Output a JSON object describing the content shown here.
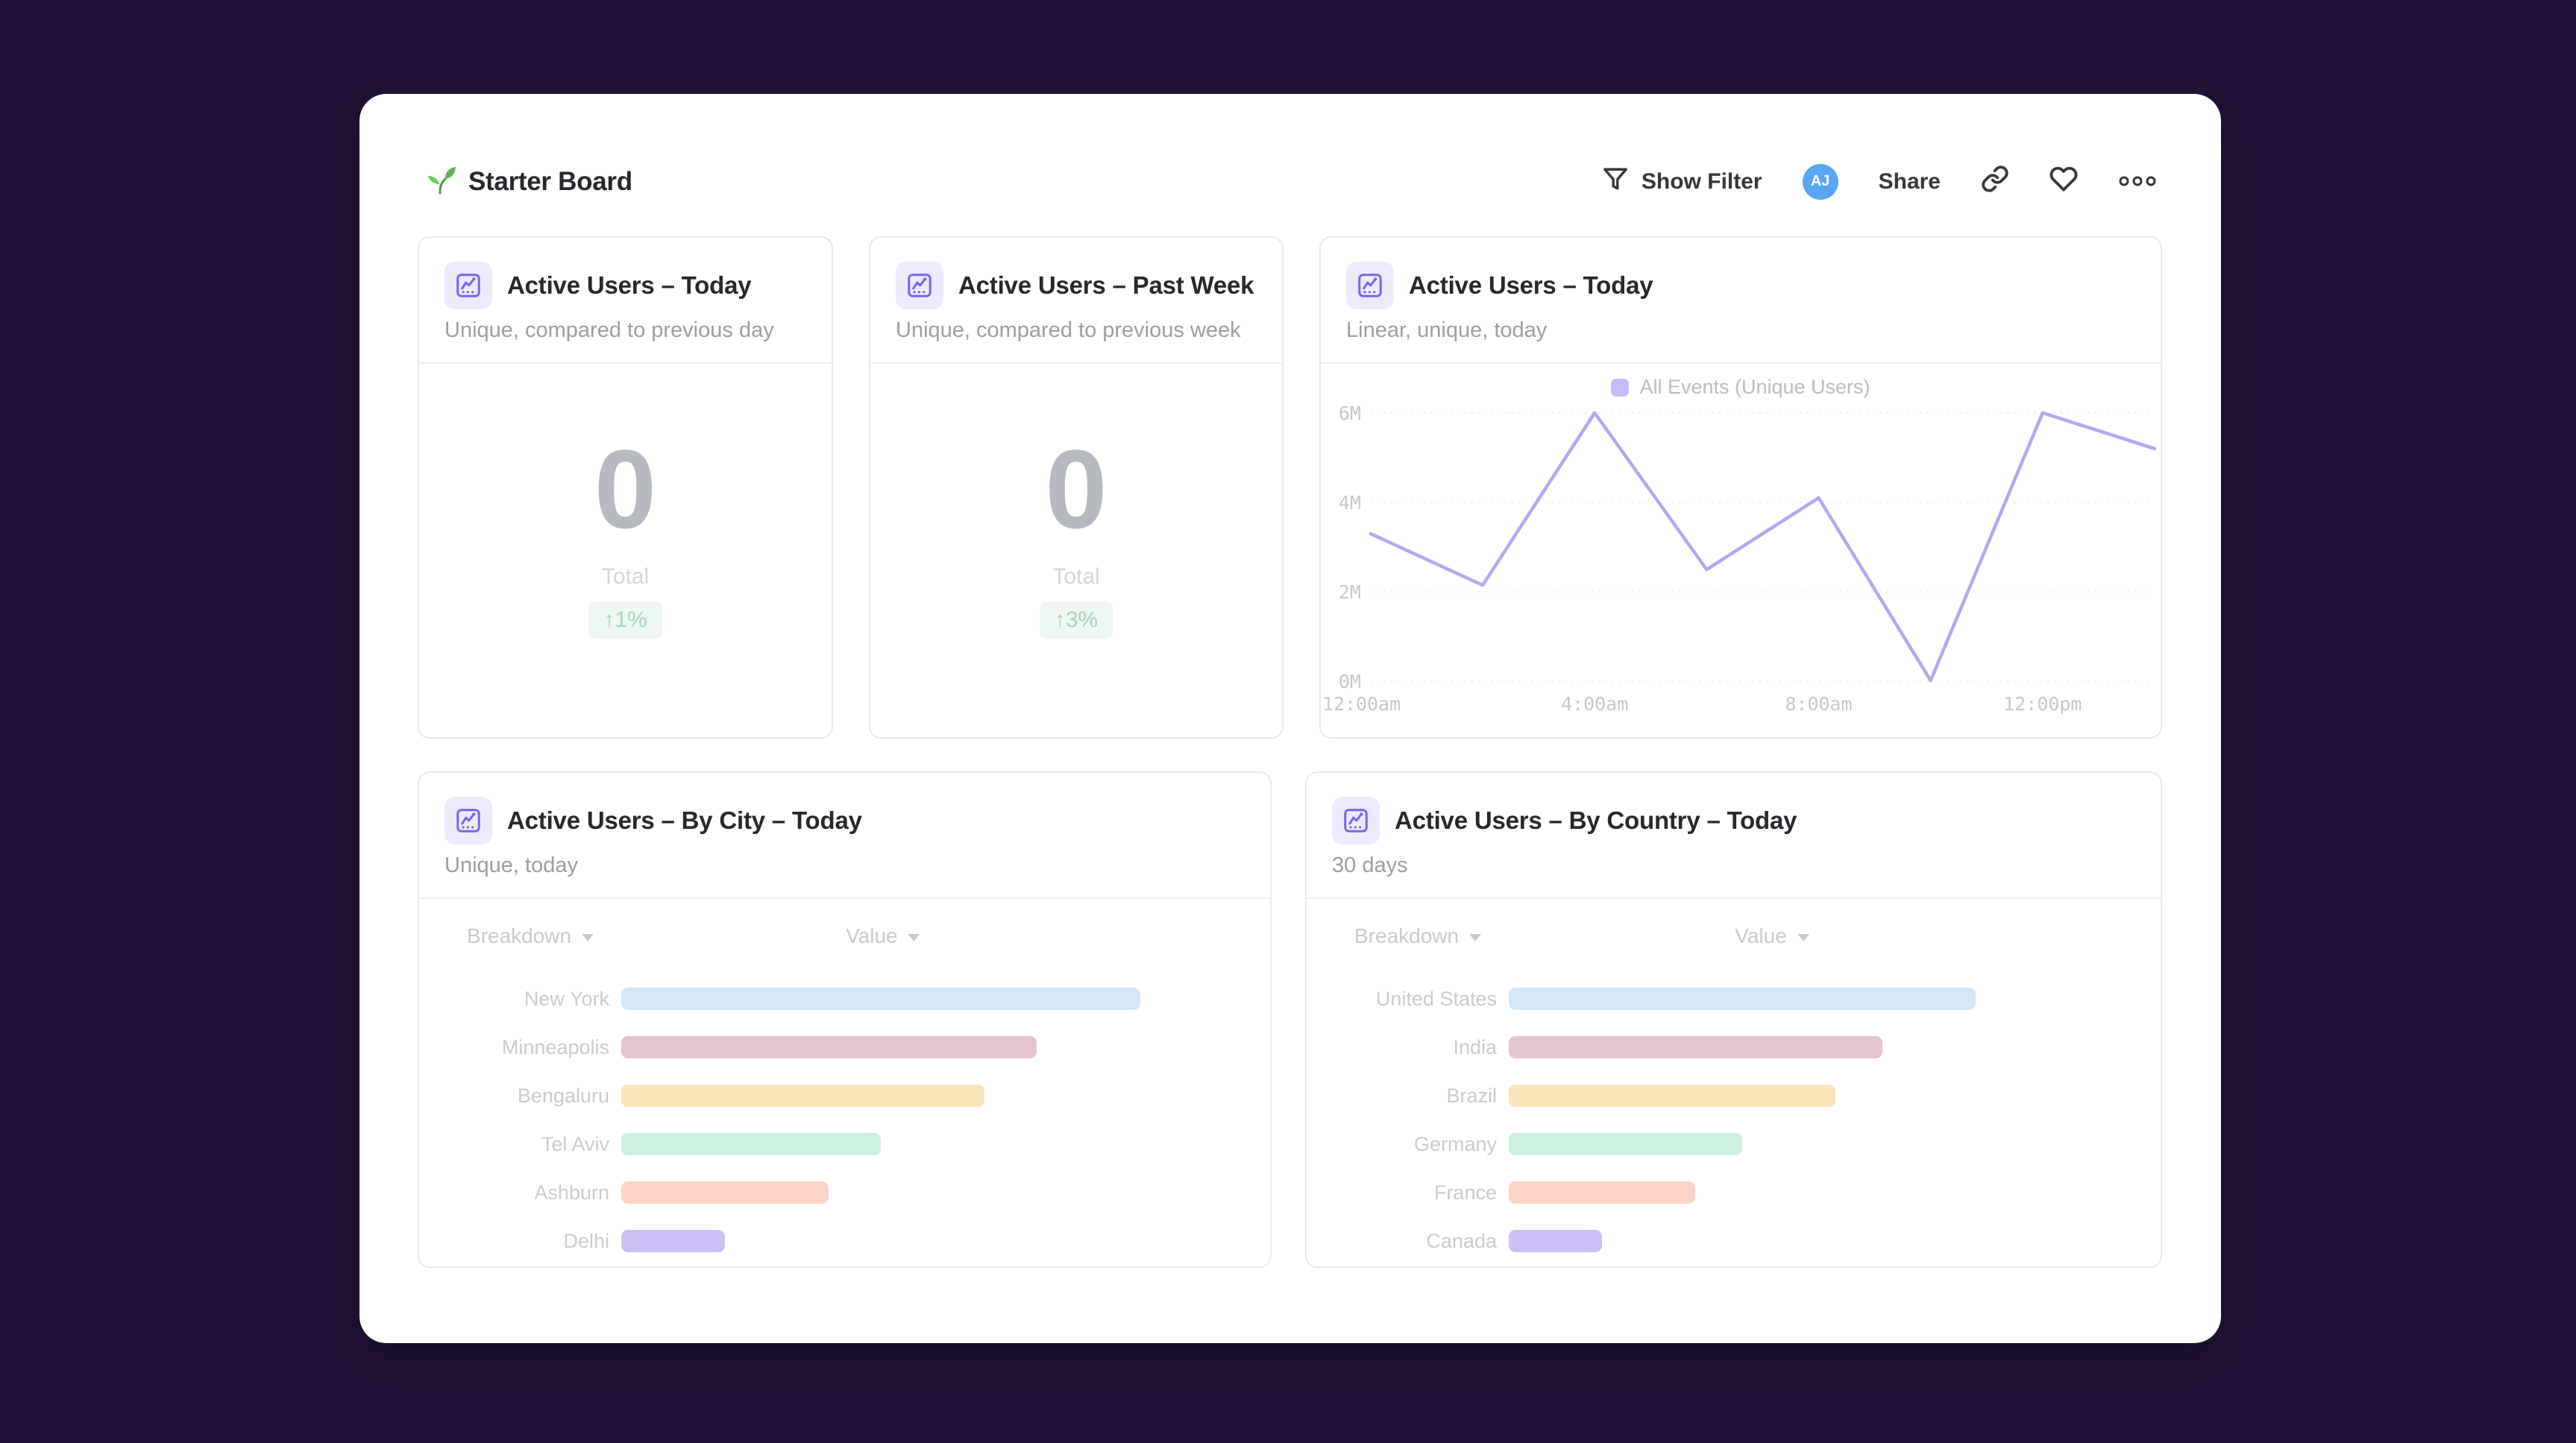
{
  "page": {
    "title": "Starter Board",
    "title_icon": "seedling"
  },
  "toolbar": {
    "show_filter": "Show Filter",
    "avatar": "AJ",
    "share": "Share",
    "icons": [
      "filter-icon",
      "link-icon",
      "heart-icon",
      "more-options-icon"
    ]
  },
  "colors": {
    "background": "#211239",
    "accent_purple": "#7c62f2",
    "line_series": "#b4a7f2",
    "legend_square": "#c8bcf8",
    "delta_badge_bg": "#eef6f1",
    "delta_badge_text": "#a3d6bd",
    "avatar_bg": "#58a6f3"
  },
  "stat_cards": [
    {
      "title": "Active Users – Today",
      "subtitle": "Unique, compared to previous day",
      "value": "0",
      "value_label": "Total",
      "delta": "↑1%"
    },
    {
      "title": "Active Users – Past Week",
      "subtitle": "Unique, compared to previous week",
      "value": "0",
      "value_label": "Total",
      "delta": "↑3%"
    }
  ],
  "line_card": {
    "title": "Active Users – Today",
    "subtitle": "Linear, unique, today",
    "legend": "All Events (Unique Users)"
  },
  "breakdown_cards": [
    {
      "title": "Active Users – By City – Today",
      "subtitle": "Unique, today",
      "breakdown_label": "Breakdown",
      "value_label": "Value",
      "rows": [
        {
          "label": "New York",
          "pct": 100,
          "color": "#d3e7f8"
        },
        {
          "label": "Minneapolis",
          "pct": 80,
          "color": "#e3c6d0"
        },
        {
          "label": "Bengaluru",
          "pct": 70,
          "color": "#fae4bb"
        },
        {
          "label": "Tel Aviv",
          "pct": 50,
          "color": "#cbf0e0"
        },
        {
          "label": "Ashburn",
          "pct": 40,
          "color": "#fdd3c6"
        },
        {
          "label": "Delhi",
          "pct": 20,
          "color": "#ccc0f4"
        }
      ]
    },
    {
      "title": "Active Users – By Country – Today",
      "subtitle": "30 days",
      "breakdown_label": "Breakdown",
      "value_label": "Value",
      "rows": [
        {
          "label": "United States",
          "pct": 100,
          "color": "#d3e7f8"
        },
        {
          "label": "India",
          "pct": 80,
          "color": "#e3c6d0"
        },
        {
          "label": "Brazil",
          "pct": 70,
          "color": "#fae4bb"
        },
        {
          "label": "Germany",
          "pct": 50,
          "color": "#cbf0e0"
        },
        {
          "label": "France",
          "pct": 40,
          "color": "#fdd3c6"
        },
        {
          "label": "Canada",
          "pct": 20,
          "color": "#ccc0f4"
        }
      ]
    }
  ],
  "chart_data": [
    {
      "type": "line",
      "title": "Active Users – Today",
      "legend": [
        "All Events (Unique Users)"
      ],
      "x": [
        "12:00am",
        "2:00am",
        "4:00am",
        "6:00am",
        "8:00am",
        "10:00am",
        "12:00pm",
        "2:00pm"
      ],
      "series": [
        {
          "name": "All Events (Unique Users)",
          "values_millions": [
            3.3,
            2.15,
            6.0,
            2.5,
            4.1,
            0.02,
            6.0,
            5.2
          ]
        }
      ],
      "xticks": [
        "12:00am",
        "4:00am",
        "8:00am",
        "12:00pm"
      ],
      "yticks": [
        "0M",
        "2M",
        "4M",
        "6M"
      ],
      "ylim": [
        0,
        6
      ],
      "grid": "dashed-horizontal",
      "legend_position": "top-center"
    },
    {
      "type": "bar",
      "orientation": "horizontal",
      "title": "Active Users – By City – Today",
      "categories": [
        "New York",
        "Minneapolis",
        "Bengaluru",
        "Tel Aviv",
        "Ashburn",
        "Delhi"
      ],
      "values_pct_of_max": [
        100,
        80,
        70,
        50,
        40,
        20
      ]
    },
    {
      "type": "bar",
      "orientation": "horizontal",
      "title": "Active Users – By Country – Today",
      "categories": [
        "United States",
        "India",
        "Brazil",
        "Germany",
        "France",
        "Canada"
      ],
      "values_pct_of_max": [
        100,
        80,
        70,
        50,
        40,
        20
      ]
    }
  ]
}
